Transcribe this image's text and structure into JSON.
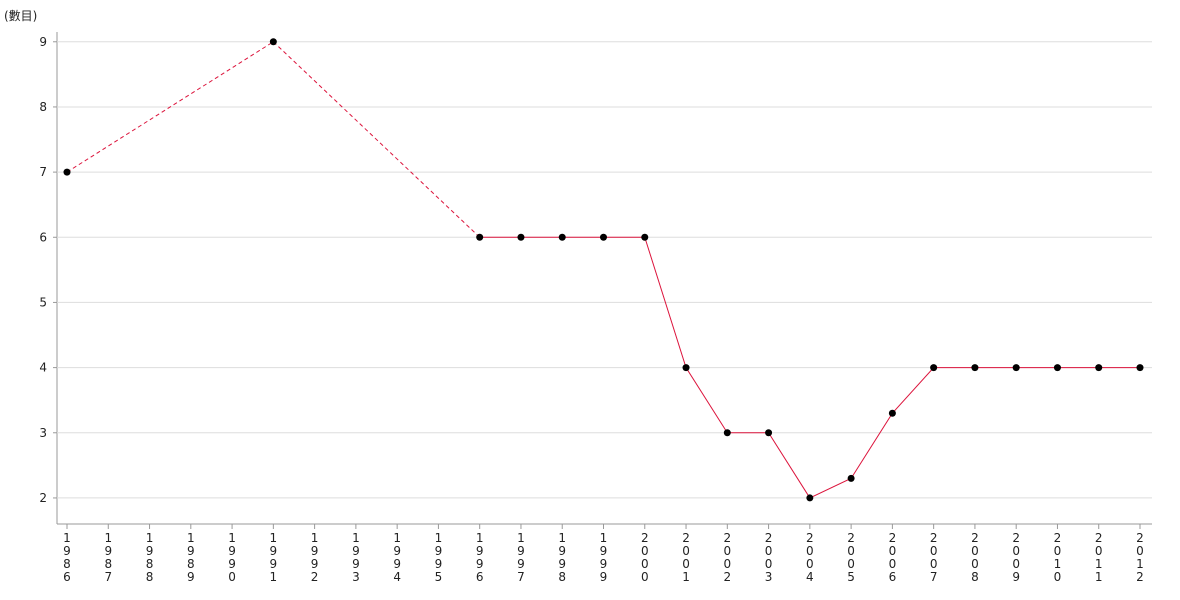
{
  "chart_data": {
    "type": "line",
    "y_label": "(數目)",
    "categories": [
      "1986",
      "1987",
      "1988",
      "1989",
      "1990",
      "1991",
      "1992",
      "1993",
      "1994",
      "1995",
      "1996",
      "1997",
      "1998",
      "1999",
      "2000",
      "2001",
      "2002",
      "2003",
      "2004",
      "2005",
      "2006",
      "2007",
      "2008",
      "2009",
      "2010",
      "2011",
      "2012"
    ],
    "series": [
      {
        "color": "#dc143c",
        "marker_color": "#000000",
        "values": [
          7,
          null,
          null,
          null,
          null,
          9,
          null,
          null,
          null,
          null,
          6,
          6,
          6,
          6,
          6,
          4,
          3,
          3,
          2,
          2.3,
          3.3,
          4,
          4,
          4,
          4,
          4,
          4
        ]
      }
    ],
    "ylim": [
      1.6,
      9.15
    ],
    "yticks": [
      2,
      3,
      4,
      5,
      6,
      7,
      8,
      9
    ],
    "grid": true,
    "gaps_bridged": "dashed"
  }
}
